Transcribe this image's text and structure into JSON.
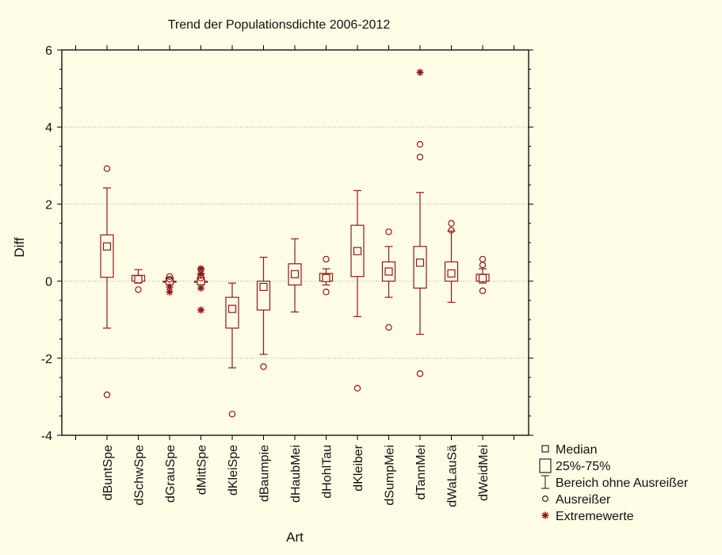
{
  "chart_data": {
    "type": "box",
    "title": "Trend der Populationsdichte 2006-2012",
    "xlabel": "Art",
    "ylabel": "Diff",
    "ylim": [
      -4,
      6
    ],
    "yticks": [
      -4,
      -2,
      0,
      2,
      4,
      6
    ],
    "grid": "horizontal dotted lines at y = -2, 0, 2, 4",
    "box_color": "#8b1a1a",
    "categories": [
      "dBuntSpe",
      "dSchwSpe",
      "dGrauSpe",
      "dMittSpe",
      "dKleiSpe",
      "dBaumpie",
      "dHaubMei",
      "dHohlTau",
      "dKleiber",
      "dSumpMei",
      "dTannMei",
      "dWaLauSä",
      "dWeidMei"
    ],
    "series": [
      {
        "category": "dBuntSpe",
        "median": 0.9,
        "q1": 0.1,
        "q3": 1.2,
        "whisker_low": -1.22,
        "whisker_high": 2.42,
        "outliers": [
          2.92,
          -2.95
        ],
        "extremes": []
      },
      {
        "category": "dSchwSpe",
        "median": 0.05,
        "q1": 0.0,
        "q3": 0.15,
        "whisker_low": -0.05,
        "whisker_high": 0.3,
        "outliers": [
          -0.22
        ],
        "extremes": []
      },
      {
        "category": "dGrauSpe",
        "median": 0.0,
        "q1": 0.0,
        "q3": 0.0,
        "whisker_low": 0.0,
        "whisker_high": 0.0,
        "outliers": [
          0.12,
          0.05
        ],
        "extremes": [
          -0.15,
          -0.28
        ]
      },
      {
        "category": "dMittSpe",
        "median": 0.0,
        "q1": 0.0,
        "q3": 0.0,
        "whisker_low": 0.0,
        "whisker_high": 0.0,
        "outliers": [
          0.3,
          0.15,
          0.08
        ],
        "extremes": [
          0.32,
          0.2,
          -0.18,
          -0.75
        ]
      },
      {
        "category": "dKleiSpe",
        "median": -0.72,
        "q1": -1.22,
        "q3": -0.42,
        "whisker_low": -2.25,
        "whisker_high": -0.05,
        "outliers": [
          -3.45
        ],
        "extremes": []
      },
      {
        "category": "dBaumpie",
        "median": -0.15,
        "q1": -0.75,
        "q3": 0.0,
        "whisker_low": -1.9,
        "whisker_high": 0.62,
        "outliers": [
          -2.22
        ],
        "extremes": []
      },
      {
        "category": "dHaubMei",
        "median": 0.18,
        "q1": -0.1,
        "q3": 0.45,
        "whisker_low": -0.8,
        "whisker_high": 1.1,
        "outliers": [],
        "extremes": []
      },
      {
        "category": "dHohlTau",
        "median": 0.08,
        "q1": 0.0,
        "q3": 0.2,
        "whisker_low": -0.1,
        "whisker_high": 0.32,
        "outliers": [
          0.57,
          -0.28
        ],
        "extremes": []
      },
      {
        "category": "dKleiber",
        "median": 0.78,
        "q1": 0.12,
        "q3": 1.45,
        "whisker_low": -0.92,
        "whisker_high": 2.35,
        "outliers": [
          -2.78
        ],
        "extremes": []
      },
      {
        "category": "dSumpMei",
        "median": 0.25,
        "q1": 0.0,
        "q3": 0.5,
        "whisker_low": -0.42,
        "whisker_high": 0.9,
        "outliers": [
          1.28,
          -1.2
        ],
        "extremes": []
      },
      {
        "category": "dTannMei",
        "median": 0.48,
        "q1": -0.18,
        "q3": 0.9,
        "whisker_low": -1.38,
        "whisker_high": 2.3,
        "outliers": [
          3.55,
          3.22,
          -2.4
        ],
        "extremes": [
          5.42
        ]
      },
      {
        "category": "dWaLauSä",
        "median": 0.2,
        "q1": 0.0,
        "q3": 0.5,
        "whisker_low": -0.55,
        "whisker_high": 1.3,
        "outliers": [
          1.5,
          1.32
        ],
        "extremes": []
      },
      {
        "category": "dWeidMei",
        "median": 0.08,
        "q1": 0.0,
        "q3": 0.18,
        "whisker_low": -0.05,
        "whisker_high": 0.32,
        "outliers": [
          0.57,
          0.42,
          -0.25
        ],
        "extremes": []
      }
    ],
    "legend": {
      "placement": "bottom-right",
      "items": [
        {
          "symbol": "small-square",
          "label": "Median"
        },
        {
          "symbol": "box",
          "label": "25%-75%"
        },
        {
          "symbol": "whisker",
          "label": "Bereich ohne Ausreißer"
        },
        {
          "symbol": "circle",
          "label": "Ausreißer"
        },
        {
          "symbol": "asterisk",
          "label": "Extremewerte"
        }
      ]
    }
  }
}
